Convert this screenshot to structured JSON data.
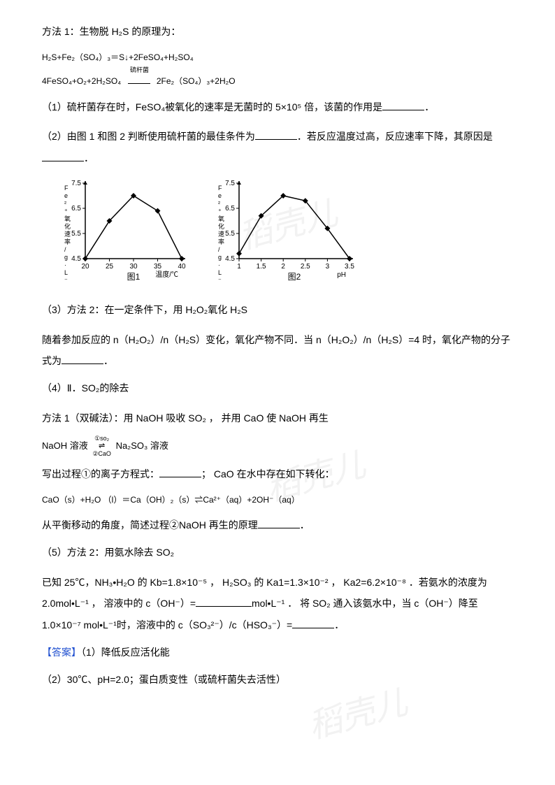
{
  "method1": {
    "title": "方法 1：生物脱 H₂S 的原理为：",
    "eq1": "H₂S+Fe₂（SO₄）₃＝S↓+2FeSO₄+H₂SO₄",
    "eq2_left": "4FeSO₄+O₂+2H₂SO₄",
    "eq2_catalyst": "硫杆菌",
    "eq2_right": "2Fe₂（SO₄）₃+2H₂O"
  },
  "q1": {
    "text_a": "（1）硫杆菌存在时，FeSO₄被氧化的速率是无菌时的 5×10⁵ 倍，该菌的作用是",
    "text_b": "．"
  },
  "q2": {
    "text_a": "（2）由图 1 和图 2 判断使用硫杆菌的最佳条件为",
    "text_b": "．若反应温度过高，反应速率下降，其原因是",
    "text_c": "．"
  },
  "chart1": {
    "type": "line",
    "ylabel": "Fe²⁺氧化速率/g·L⁻¹·h⁻¹",
    "xlabel": "温度/℃",
    "caption": "图1",
    "x_ticks": [
      20,
      25,
      30,
      35,
      40
    ],
    "y_ticks": [
      4.5,
      5.5,
      6.5,
      7.5
    ],
    "data_x": [
      20,
      25,
      30,
      35,
      40
    ],
    "data_y": [
      4.5,
      6.0,
      7.0,
      6.4,
      4.5
    ],
    "line_color": "#000000",
    "marker": "diamond",
    "marker_size": 4,
    "background": "#ffffff",
    "axis_color": "#000000",
    "font_size": 10
  },
  "chart2": {
    "type": "line",
    "ylabel": "Fe²⁺氧化速率/g·L⁻¹·h⁻¹",
    "xlabel": "pH",
    "caption": "图2",
    "x_ticks": [
      1.0,
      1.5,
      2.0,
      2.5,
      3.0,
      3.5
    ],
    "y_ticks": [
      4.5,
      5.5,
      6.5,
      7.5
    ],
    "data_x": [
      1.0,
      1.5,
      2.0,
      2.5,
      3.0,
      3.5
    ],
    "data_y": [
      4.7,
      6.2,
      7.0,
      6.8,
      5.7,
      4.5
    ],
    "line_color": "#000000",
    "marker": "diamond",
    "marker_size": 4,
    "background": "#ffffff",
    "axis_color": "#000000",
    "font_size": 10
  },
  "q3": {
    "line1": "（3）方法 2：在一定条件下，用 H₂O₂氧化 H₂S",
    "line2_a": "随着参加反应的 n（H₂O₂）/n（H₂S）变化，氧化产物不同．当 n（H₂O₂）/n（H₂S）=4 时，氧化产物的分子式为",
    "line2_b": "．"
  },
  "q4": {
    "title": "（4）Ⅱ．SO₂的除去",
    "method_line": "方法 1（双碱法）：用 NaOH 吸收 SO₂  ， 并用 CaO 使 NaOH 再生",
    "eq_left": "NaOH 溶液",
    "eq_top": "①so₂",
    "eq_bot": "②CaO",
    "eq_right": "Na₂SO₃ 溶液",
    "q_a": "写出过程①的离子方程式：",
    "q_b": "； CaO 在水中存在如下转化：",
    "eq2": "CaO（s）+H₂O （l）＝Ca（OH）₂（s）⇌Ca²⁺（aq）+2OH⁻（aq）",
    "q_c": "从平衡移动的角度，简述过程②NaOH 再生的原理",
    "q_d": "．"
  },
  "q5": {
    "title": "（5）方法 2：用氨水除去 SO₂",
    "line_a": "已知 25℃，NH₃•H₂O 的 Kb=1.8×10⁻⁵  ， H₂SO₃ 的 Ka1=1.3×10⁻²  ， Ka2=6.2×10⁻⁸ ．若氨水的浓度为2.0mol•L⁻¹  ， 溶液中的 c（OH⁻）=",
    "line_b": "mol•L⁻¹ ． 将 SO₂ 通入该氨水中，当 c（OH⁻）降至 1.0×10⁻⁷ mol•L⁻¹时，溶液中的 c（SO₃²⁻）/c（HSO₃⁻）=",
    "line_c": "．"
  },
  "answer": {
    "label": "【答案】",
    "a1": "（1）降低反应活化能",
    "a2": "（2）30℃、pH=2.0；蛋白质变性（或硫杆菌失去活性）"
  },
  "watermark": "稻壳儿"
}
